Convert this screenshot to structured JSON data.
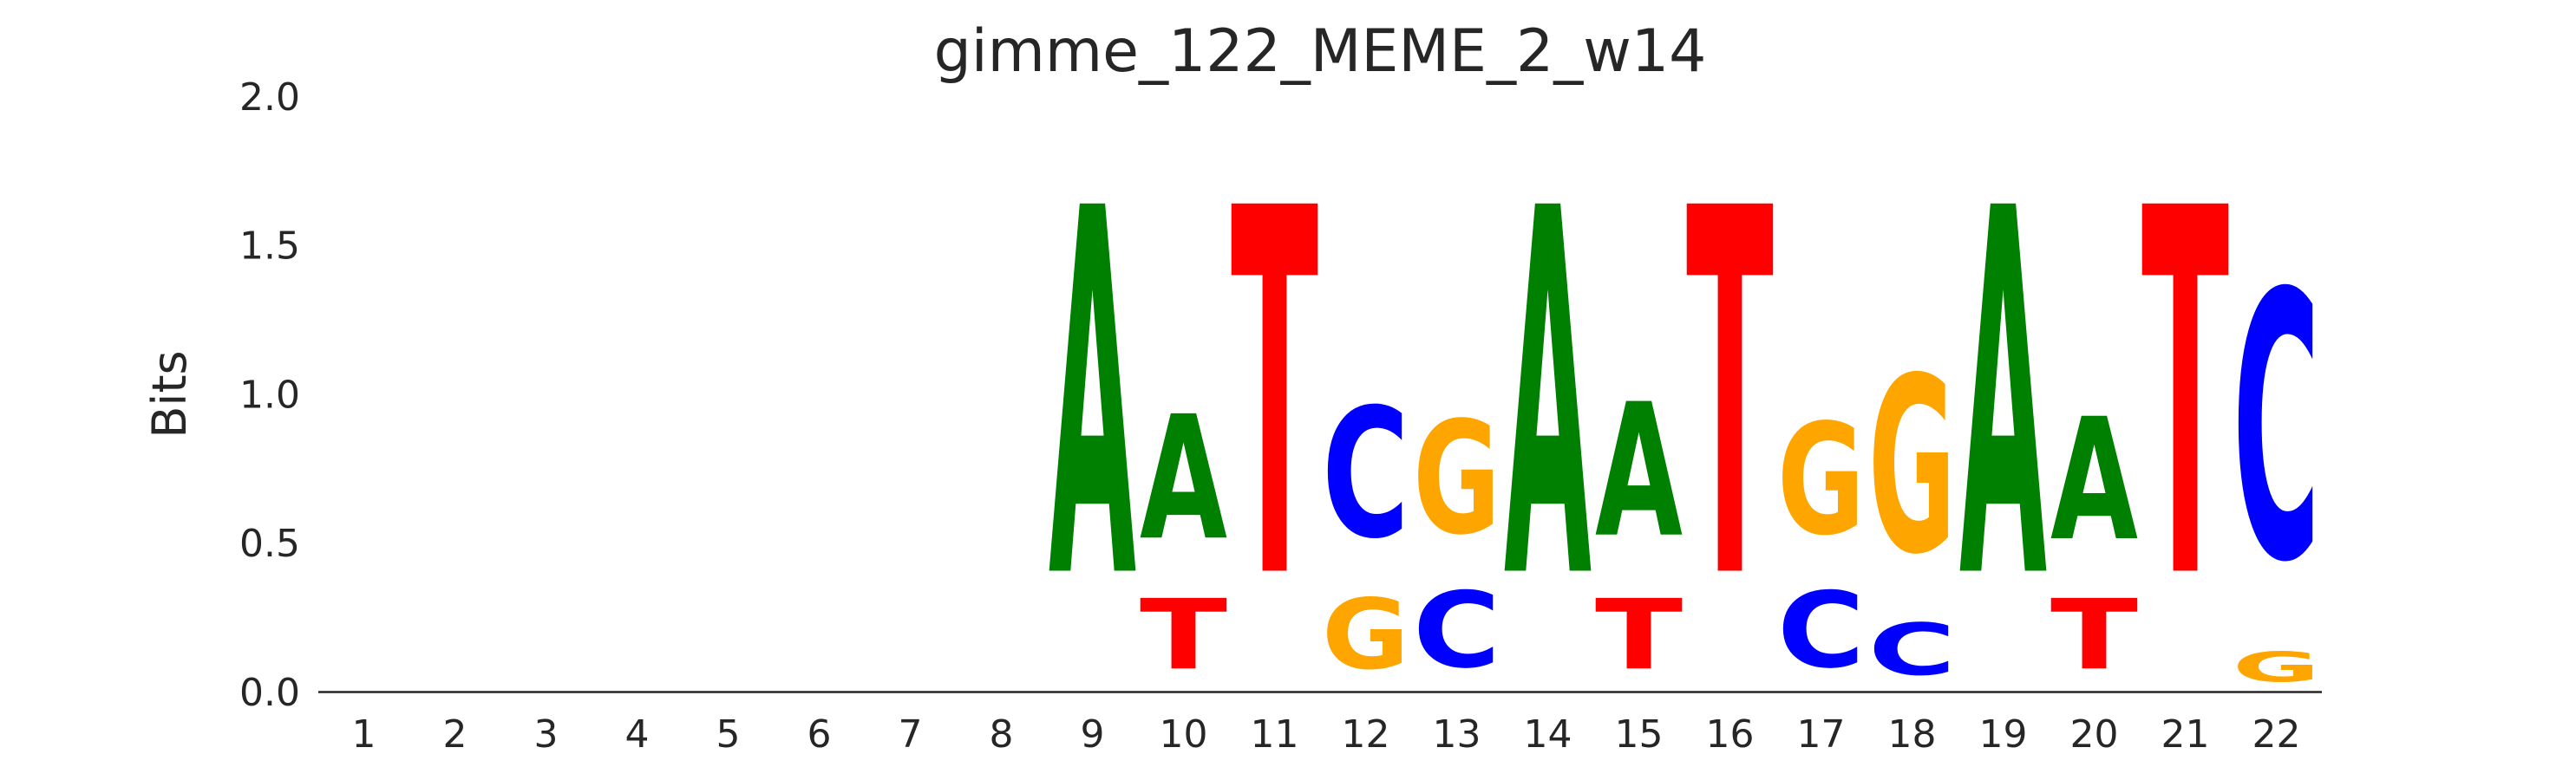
{
  "title": "gimme_122_MEME_2_w14",
  "y_axis": {
    "label": "Bits",
    "ticks": [
      "2.0",
      "1.5",
      "1.0",
      "0.5",
      "0.0"
    ],
    "tick_values": [
      2.0,
      1.5,
      1.0,
      0.5,
      0.0
    ],
    "range": [
      0.0,
      2.0
    ]
  },
  "x_axis": {
    "ticks": [
      "1",
      "2",
      "3",
      "4",
      "5",
      "6",
      "7",
      "8",
      "9",
      "10",
      "11",
      "12",
      "13",
      "14",
      "15",
      "16",
      "17",
      "18",
      "19",
      "20",
      "21",
      "22"
    ]
  },
  "colors": {
    "A": "#008000",
    "C": "#0000FF",
    "G": "#FFA500",
    "T": "#FF0000",
    "text": "#262626",
    "axis_line": "#262626",
    "background": "#FFFFFF"
  },
  "chart_data": {
    "type": "sequence_logo",
    "title": "gimme_122_MEME_2_w14",
    "xlabel": "",
    "ylabel": "Bits",
    "ylim": [
      0,
      2
    ],
    "x_positions": [
      1,
      2,
      3,
      4,
      5,
      6,
      7,
      8,
      9,
      10,
      11,
      12,
      13,
      14,
      15,
      16,
      17,
      18,
      19,
      20,
      21,
      22
    ],
    "grid": false,
    "legend_position": "none",
    "stacks": [
      {
        "position": 1,
        "letters": []
      },
      {
        "position": 2,
        "letters": []
      },
      {
        "position": 3,
        "letters": []
      },
      {
        "position": 4,
        "letters": []
      },
      {
        "position": 5,
        "letters": []
      },
      {
        "position": 6,
        "letters": []
      },
      {
        "position": 7,
        "letters": []
      },
      {
        "position": 8,
        "letters": []
      },
      {
        "position": 9,
        "letters": [
          {
            "base": "A",
            "bits": 1.98
          }
        ]
      },
      {
        "position": 10,
        "letters": [
          {
            "base": "T",
            "bits": 0.38
          },
          {
            "base": "A",
            "bits": 0.67
          }
        ]
      },
      {
        "position": 11,
        "letters": [
          {
            "base": "T",
            "bits": 1.98
          }
        ]
      },
      {
        "position": 12,
        "letters": [
          {
            "base": "G",
            "bits": 0.38
          },
          {
            "base": "C",
            "bits": 0.7
          }
        ]
      },
      {
        "position": 13,
        "letters": [
          {
            "base": "C",
            "bits": 0.41
          },
          {
            "base": "G",
            "bits": 0.61
          }
        ]
      },
      {
        "position": 14,
        "letters": [
          {
            "base": "A",
            "bits": 1.98
          }
        ]
      },
      {
        "position": 15,
        "letters": [
          {
            "base": "T",
            "bits": 0.38
          },
          {
            "base": "A",
            "bits": 0.72
          }
        ]
      },
      {
        "position": 16,
        "letters": [
          {
            "base": "T",
            "bits": 1.98
          }
        ]
      },
      {
        "position": 17,
        "letters": [
          {
            "base": "C",
            "bits": 0.41
          },
          {
            "base": "G",
            "bits": 0.6
          }
        ]
      },
      {
        "position": 18,
        "letters": [
          {
            "base": "C",
            "bits": 0.28
          },
          {
            "base": "G",
            "bits": 0.95
          }
        ]
      },
      {
        "position": 19,
        "letters": [
          {
            "base": "A",
            "bits": 1.98
          }
        ]
      },
      {
        "position": 20,
        "letters": [
          {
            "base": "T",
            "bits": 0.38
          },
          {
            "base": "A",
            "bits": 0.66
          }
        ]
      },
      {
        "position": 21,
        "letters": [
          {
            "base": "T",
            "bits": 1.98
          }
        ]
      },
      {
        "position": 22,
        "letters": [
          {
            "base": "G",
            "bits": 0.16
          },
          {
            "base": "C",
            "bits": 1.44
          }
        ]
      }
    ]
  }
}
